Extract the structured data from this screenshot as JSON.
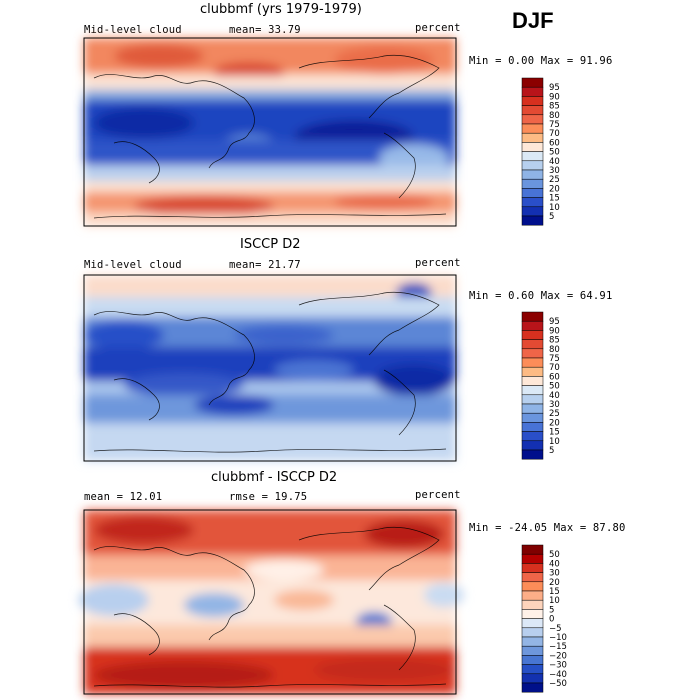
{
  "season": "DJF",
  "chart_data": [
    {
      "type": "heatmap",
      "title": "clubbmf (yrs 1979-1979)",
      "field_label": "Mid-level cloud",
      "mean_text": "mean=  33.79",
      "units": "percent",
      "stats_text": "Min =   0.00 Max =  91.96",
      "colorbar_levels": [
        "95",
        "90",
        "85",
        "80",
        "75",
        "70",
        "60",
        "50",
        "40",
        "30",
        "25",
        "20",
        "15",
        "10",
        "5"
      ],
      "colorbar_colors": [
        "#8b0000",
        "#b8141a",
        "#d7301f",
        "#e34a33",
        "#ef6548",
        "#fc8d59",
        "#fdbb84",
        "#fee8d8",
        "#dbe9f6",
        "#b7d0ee",
        "#8fb4e6",
        "#6a95de",
        "#4873d6",
        "#2a4fc9",
        "#1330b2",
        "#000f8c"
      ],
      "mean_value": 33.79,
      "min": 0.0,
      "max": 91.96
    },
    {
      "type": "heatmap",
      "title": "ISCCP D2",
      "field_label": "Mid-level cloud",
      "mean_text": "mean=  21.77",
      "units": "percent",
      "stats_text": "Min =   0.60 Max =  64.91",
      "colorbar_levels": [
        "95",
        "90",
        "85",
        "80",
        "75",
        "70",
        "60",
        "50",
        "40",
        "30",
        "25",
        "20",
        "15",
        "10",
        "5"
      ],
      "colorbar_colors": [
        "#8b0000",
        "#b8141a",
        "#d7301f",
        "#e34a33",
        "#ef6548",
        "#fc8d59",
        "#fdbb84",
        "#fee8d8",
        "#dbe9f6",
        "#b7d0ee",
        "#8fb4e6",
        "#6a95de",
        "#4873d6",
        "#2a4fc9",
        "#1330b2",
        "#000f8c"
      ],
      "mean_value": 21.77,
      "min": 0.6,
      "max": 64.91
    },
    {
      "type": "heatmap",
      "title": "clubbmf - ISCCP D2",
      "mean_text": "mean =  12.01",
      "rmse_text": "rmse =  19.75",
      "units": "percent",
      "stats_text": "Min = -24.05 Max =  87.80",
      "colorbar_levels": [
        "50",
        "40",
        "30",
        "20",
        "15",
        "10",
        "5",
        "0",
        "−5",
        "−10",
        "−15",
        "−20",
        "−30",
        "−40",
        "−50"
      ],
      "colorbar_colors": [
        "#7f0000",
        "#b30000",
        "#d7301f",
        "#ef6548",
        "#fc8d59",
        "#fdae88",
        "#fdd4bc",
        "#fff1e8",
        "#dce8f7",
        "#b8cfee",
        "#93b5e5",
        "#6e97dc",
        "#4876d2",
        "#2650c6",
        "#1331b0",
        "#00108a"
      ],
      "mean_value": 12.01,
      "rmse_value": 19.75,
      "min": -24.05,
      "max": 87.8
    }
  ]
}
